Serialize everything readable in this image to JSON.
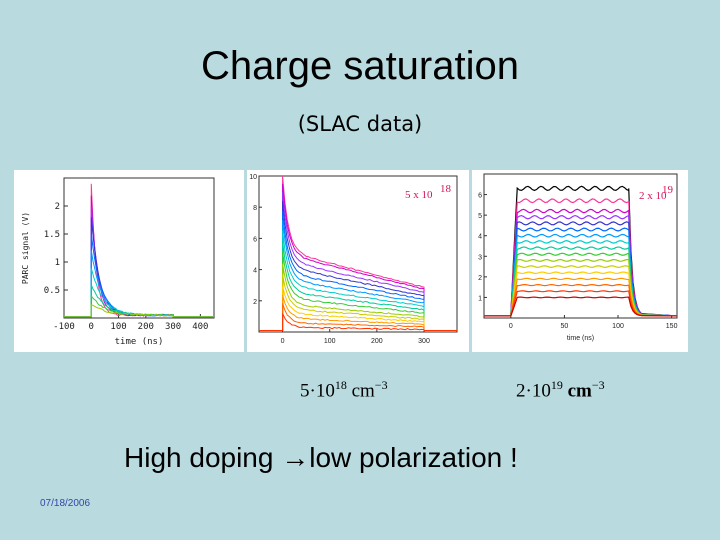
{
  "slide": {
    "title": "Charge saturation",
    "subtitle": "(SLAC data)",
    "conclusion": "High doping →low polarization !",
    "date": "07/18/2006"
  },
  "labels": {
    "left": {
      "coef": "5",
      "dot": "·",
      "base": "10",
      "exp": "18",
      "unit": "cm",
      "unitexp": "−3"
    },
    "right": {
      "coef": "2",
      "dot": "·",
      "base": "10",
      "exp": "19",
      "unit": "cm",
      "unitexp": "−3"
    }
  },
  "chart_data": [
    {
      "type": "line",
      "title": "",
      "xlabel": "time (ns)",
      "ylabel": "PARC signal (V)",
      "xlim": [
        -100,
        450
      ],
      "ylim": [
        0,
        2.5
      ],
      "xticks": [
        "-100",
        "0",
        "100",
        "200",
        "300",
        "400"
      ],
      "yticks": [
        "0.5",
        "1",
        "1.5",
        "2"
      ],
      "series_peaks": [
        2.4,
        2.2,
        2.0,
        1.8,
        1.5,
        1.2,
        0.9,
        0.6,
        0.4,
        0.25
      ],
      "plateau": 0.05,
      "pulse": [
        0,
        300
      ]
    },
    {
      "type": "line",
      "annotation": {
        "coef": "5 x 10",
        "exp": "18"
      },
      "xlabel": "",
      "ylabel": "",
      "xlim": [
        -50,
        370
      ],
      "ylim": [
        0,
        10
      ],
      "xticks": [
        "0",
        "100",
        "200",
        "300"
      ],
      "yticks": [
        "2",
        "4",
        "6",
        "8",
        "10"
      ],
      "series_peaks": [
        10,
        9.5,
        9,
        8.4,
        7.8,
        7.2,
        6.5,
        5.8,
        5.1,
        4.4,
        3.7,
        3.0,
        2.4,
        1.8,
        1.2
      ],
      "series_plateaus": [
        5.2,
        5.0,
        4.6,
        4.2,
        3.8,
        3.4,
        3.0,
        2.6,
        2.2,
        1.8,
        1.5,
        1.2,
        0.9,
        0.6,
        0.3
      ],
      "pulse": [
        0,
        300
      ]
    },
    {
      "type": "line",
      "annotation": {
        "coef": "2 x 10",
        "exp": "19"
      },
      "xlabel": "time (ns)",
      "ylabel": "",
      "xlim": [
        -25,
        155
      ],
      "ylim": [
        0,
        7
      ],
      "xticks": [
        "0",
        "50",
        "100",
        "150"
      ],
      "yticks": [
        "1",
        "2",
        "3",
        "4",
        "5",
        "6"
      ],
      "series_levels": [
        6.3,
        5.7,
        5.2,
        4.9,
        4.6,
        4.3,
        4.0,
        3.7,
        3.4,
        3.1,
        2.8,
        2.5,
        2.2,
        1.9,
        1.6,
        1.3,
        1.0
      ],
      "pulse": [
        0,
        110
      ]
    }
  ],
  "colors": [
    "#000000",
    "#ff3399",
    "#cc00cc",
    "#9933ff",
    "#3333cc",
    "#0066ff",
    "#0099ff",
    "#00cccc",
    "#00cc99",
    "#33cc33",
    "#99cc00",
    "#cccc00",
    "#ffcc00",
    "#ff9900",
    "#ff6600",
    "#ff3300",
    "#cc0000"
  ]
}
